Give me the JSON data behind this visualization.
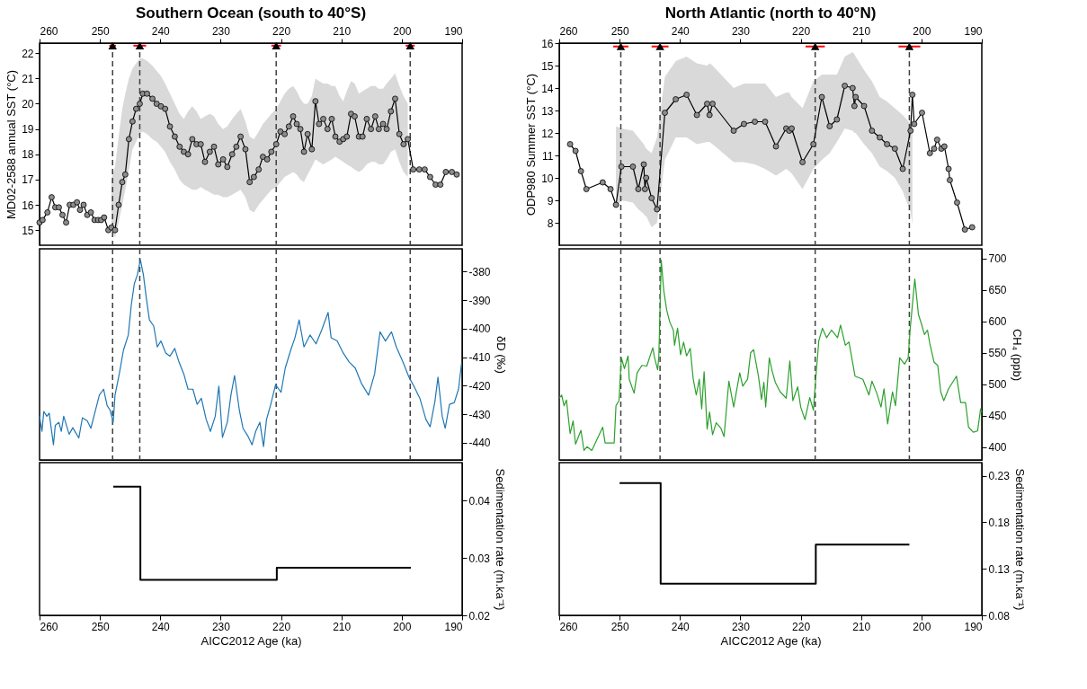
{
  "chart_data": [
    {
      "type": "line",
      "title": "Southern Ocean (south to 40°S)",
      "ylabel": "MD02-2588  annual SST (°C)",
      "xlim": [
        260,
        190
      ],
      "xticks": [
        260,
        250,
        240,
        230,
        220,
        210,
        200,
        190
      ],
      "ylim": [
        14.4,
        22.4
      ],
      "yticks": [
        15,
        16,
        17,
        18,
        19,
        20,
        21,
        22
      ],
      "series": [
        {
          "marker": "circle",
          "color": "#000000",
          "x": [
            260,
            259.5,
            258.7,
            258,
            257.4,
            256.8,
            256.2,
            255.6,
            255,
            254.4,
            253.8,
            253.3,
            252.7,
            252.1,
            251.5,
            250.9,
            250.3,
            249.8,
            249.3,
            248.6,
            248.1,
            247.5,
            246.9,
            246.3,
            245.8,
            245.2,
            244.6,
            244,
            243.4,
            242.9,
            242.2,
            241.3,
            240.6,
            239.9,
            239.2,
            238.4,
            237.6,
            236.8,
            236.1,
            235.4,
            234.7,
            234,
            233.3,
            232.6,
            231.8,
            231.1,
            230.4,
            229.6,
            228.9,
            228.1,
            227.4,
            226.7,
            225.9,
            225.2,
            224.5,
            223.7,
            223,
            222.3,
            221.6,
            220.8,
            220.1,
            219.4,
            218.7,
            218,
            217.4,
            216.8,
            216.2,
            215.6,
            214.9,
            214.3,
            213.7,
            213,
            212.3,
            211.6,
            211,
            210.3,
            209.7,
            209.1,
            208.4,
            207.8,
            207.1,
            206.5,
            205.8,
            205.1,
            204.4,
            203.8,
            203.1,
            202.5,
            201.8,
            201.1,
            200.4,
            199.7,
            199,
            198.1,
            197.1,
            196.2,
            195.3,
            194.4,
            193.6,
            192.7,
            191.7,
            190.9
          ],
          "values": [
            15.3,
            15.4,
            15.7,
            16.3,
            15.9,
            15.9,
            15.6,
            15.3,
            16.0,
            16.0,
            16.1,
            15.8,
            16.0,
            15.6,
            15.7,
            15.4,
            15.4,
            15.4,
            15.5,
            15.0,
            15.1,
            15.0,
            16.0,
            16.9,
            17.2,
            18.6,
            19.3,
            19.8,
            20.0,
            20.4,
            20.4,
            20.2,
            20.0,
            19.9,
            19.8,
            19.1,
            18.7,
            18.3,
            18.1,
            18.0,
            18.6,
            18.4,
            18.4,
            17.7,
            18.1,
            18.3,
            17.6,
            17.8,
            17.5,
            18.0,
            18.3,
            18.7,
            18.2,
            16.9,
            17.1,
            17.4,
            17.9,
            17.8,
            18.1,
            18.4,
            18.9,
            18.8,
            19.1,
            19.5,
            19.2,
            19.0,
            18.1,
            18.8,
            18.2,
            20.1,
            19.2,
            19.4,
            19.0,
            19.4,
            18.7,
            18.5,
            18.6,
            18.7,
            19.6,
            19.5,
            18.7,
            18.7,
            19.4,
            19.0,
            19.5,
            19.0,
            19.2,
            19.0,
            19.7,
            20.2,
            18.8,
            18.4,
            18.6,
            17.4,
            17.4,
            17.4,
            17.1,
            16.8,
            16.8,
            17.3,
            17.3,
            17.2
          ],
          "lower": [
            null,
            null,
            null,
            null,
            null,
            null,
            null,
            null,
            null,
            null,
            null,
            null,
            null,
            null,
            null,
            null,
            null,
            null,
            null,
            null,
            15.0,
            14.7,
            15.3,
            16.0,
            16.6,
            17.4,
            18.2,
            18.5,
            18.8,
            18.9,
            18.8,
            18.6,
            18.5,
            18.3,
            18.1,
            17.7,
            17.4,
            17.0,
            16.8,
            16.7,
            16.6,
            16.6,
            16.7,
            16.6,
            16.5,
            16.4,
            16.4,
            16.3,
            16.3,
            16.4,
            16.5,
            16.6,
            16.3,
            15.8,
            15.7,
            16.0,
            16.2,
            16.4,
            16.6,
            16.7,
            16.9,
            17.1,
            17.2,
            17.3,
            17.2,
            17.0,
            16.9,
            17.2,
            17.5,
            17.8,
            17.7,
            17.6,
            17.7,
            17.8,
            17.9,
            17.8,
            17.7,
            17.6,
            17.5,
            17.4,
            17.3,
            17.4,
            17.6,
            17.7,
            17.7,
            17.6,
            17.6,
            17.8,
            18.1,
            18.2,
            17.7,
            17.3,
            17.1,
            null,
            null,
            null,
            null,
            null,
            null,
            null,
            null,
            null
          ],
          "upper": [
            null,
            null,
            null,
            null,
            null,
            null,
            null,
            null,
            null,
            null,
            null,
            null,
            null,
            null,
            null,
            null,
            null,
            null,
            null,
            null,
            17.0,
            17.5,
            18.7,
            19.8,
            20.4,
            21.0,
            21.4,
            21.6,
            21.8,
            21.8,
            21.7,
            21.5,
            21.3,
            21.1,
            20.8,
            20.4,
            20.0,
            19.6,
            19.4,
            19.7,
            19.9,
            19.7,
            19.4,
            19.5,
            19.6,
            19.5,
            19.2,
            19.0,
            19.1,
            19.4,
            19.6,
            19.8,
            19.3,
            18.7,
            18.6,
            18.9,
            19.2,
            19.4,
            19.6,
            19.8,
            20.1,
            20.4,
            20.6,
            20.7,
            20.5,
            20.2,
            20.0,
            20.0,
            20.3,
            21.0,
            20.9,
            20.8,
            20.8,
            20.7,
            20.7,
            20.3,
            20.1,
            20.5,
            20.9,
            20.8,
            20.4,
            20.5,
            20.6,
            20.7,
            20.7,
            20.6,
            20.6,
            20.8,
            21.0,
            21.2,
            20.7,
            20.3,
            20.0,
            null,
            null,
            null,
            null,
            null,
            null,
            null,
            null,
            null
          ]
        },
        {
          "type": "scatter",
          "marker": "triangle",
          "color": "#000000",
          "x": [
            247.9,
            243.4,
            220.8,
            198.6
          ],
          "values": [
            22.3,
            22.3,
            22.3,
            22.3
          ],
          "xerrors": [
            0.55,
            1.05,
            0.8,
            0.75
          ]
        }
      ],
      "ref_lines": [
        {
          "axis": "x",
          "value": 247.9,
          "color": "#404040",
          "line_style": "dashed"
        },
        {
          "axis": "x",
          "value": 243.4,
          "color": "#404040",
          "line_style": "dashed"
        },
        {
          "axis": "x",
          "value": 220.8,
          "color": "#404040",
          "line_style": "dashed"
        },
        {
          "axis": "x",
          "value": 198.6,
          "color": "#404040",
          "line_style": "dashed"
        }
      ]
    },
    {
      "type": "line",
      "ylabel": "δD (‰)",
      "xlim": [
        260,
        190
      ],
      "tick_labels": "y",
      "ylim": [
        -446,
        -372
      ],
      "yticks": [
        -380,
        -390,
        -400,
        -410,
        -420,
        -430,
        -440
      ],
      "series": [
        {
          "color": "#1f77b4",
          "x": [
            260,
            259.6,
            259.3,
            258.8,
            258.4,
            257.7,
            257.4,
            256.8,
            256.4,
            256,
            255.1,
            254.5,
            253.5,
            252.9,
            252.1,
            251.5,
            250.8,
            250.1,
            249.4,
            248.8,
            248.3,
            247.8,
            247.5,
            246.8,
            246.1,
            245.3,
            244.8,
            244.3,
            243.8,
            243.3,
            242.8,
            242.3,
            241.8,
            241.1,
            240.5,
            239.9,
            239.1,
            238.4,
            237.6,
            236.9,
            236.1,
            235.4,
            234.6,
            233.9,
            233.2,
            232.4,
            231.7,
            230.9,
            230.3,
            229.7,
            228.9,
            228.3,
            227.7,
            226.9,
            226.3,
            225.5,
            224.8,
            224.2,
            223.5,
            222.9,
            222.4,
            221.7,
            220.9,
            220,
            219.3,
            218.4,
            217.7,
            217,
            216.2,
            215.2,
            214.2,
            213.2,
            212.2,
            211.7,
            210.7,
            209.7,
            208.7,
            207.7,
            206.7,
            205.5,
            204.5,
            203.6,
            202.7,
            201.7,
            200.9,
            199.8,
            198.8,
            198,
            197,
            196,
            195.3,
            194.5,
            194,
            193.3,
            192.8,
            192.1,
            191.3,
            190.6,
            190.1
          ],
          "values": [
            -430.7,
            -436,
            -429,
            -430.7,
            -429.6,
            -440.7,
            -433.9,
            -432.8,
            -436,
            -430.7,
            -437,
            -434.7,
            -438.3,
            -431.2,
            -432.3,
            -434.9,
            -429.1,
            -423.3,
            -421.2,
            -427,
            -428.6,
            -432.8,
            -423.3,
            -415.9,
            -407.5,
            -402.2,
            -391.6,
            -384.2,
            -381.1,
            -375.8,
            -381.1,
            -389.5,
            -396.9,
            -399,
            -406.4,
            -404.3,
            -408.5,
            -409.6,
            -406.9,
            -411.7,
            -415.9,
            -421.2,
            -421.2,
            -426.5,
            -424.4,
            -431.8,
            -436,
            -430.7,
            -420.1,
            -438.1,
            -432.8,
            -423.3,
            -416.4,
            -428.6,
            -434.9,
            -437.6,
            -440.7,
            -436,
            -432.8,
            -441.3,
            -431.8,
            -426.5,
            -419.6,
            -422.3,
            -413.8,
            -407.5,
            -403.2,
            -396.9,
            -406.4,
            -402.2,
            -405.3,
            -400.1,
            -394.3,
            -403.2,
            -404.3,
            -408.5,
            -411.7,
            -413.8,
            -419.1,
            -423.3,
            -415.9,
            -401.1,
            -404.3,
            -401.1,
            -406.4,
            -411.7,
            -417,
            -420.1,
            -424.4,
            -431.8,
            -434.4,
            -425.4,
            -417,
            -430.7,
            -434.9,
            -426.5,
            -425.9,
            -421.2,
            -412.2
          ]
        }
      ],
      "ref_lines": [
        {
          "axis": "x",
          "value": 247.9,
          "color": "#404040",
          "line_style": "dashed"
        },
        {
          "axis": "x",
          "value": 243.4,
          "color": "#404040",
          "line_style": "dashed"
        },
        {
          "axis": "x",
          "value": 220.8,
          "color": "#404040",
          "line_style": "dashed"
        },
        {
          "axis": "x",
          "value": 198.6,
          "color": "#404040",
          "line_style": "dashed"
        }
      ]
    },
    {
      "type": "step",
      "xlabel": "AICC2012 Age (ka)",
      "ylabel": "Sedimentation rate (m.ka⁻¹)",
      "xlim": [
        260,
        190
      ],
      "xticks": [
        260,
        250,
        240,
        230,
        220,
        210,
        200,
        190
      ],
      "ylim": [
        0.02,
        0.0466
      ],
      "yticks": [
        0.02,
        0.03,
        0.04
      ],
      "series": [
        {
          "color": "#000000",
          "x": [
            247.8,
            243.3,
            220.7,
            198.5
          ],
          "values": [
            0.0424,
            0.0262,
            0.0283,
            0.0283
          ]
        }
      ]
    },
    {
      "type": "line",
      "title": "North Atlantic (north to 40°N)",
      "ylabel": "ODP980 Summer SST (°C)",
      "xlim": [
        260,
        190
      ],
      "xticks": [
        260,
        250,
        240,
        230,
        220,
        210,
        200,
        190
      ],
      "ylim": [
        7.0,
        16.0
      ],
      "yticks": [
        8,
        9,
        10,
        11,
        12,
        13,
        14,
        15,
        16
      ],
      "series": [
        {
          "marker": "circle",
          "color": "#000000",
          "x": [
            258.2,
            257.3,
            256.4,
            255.5,
            252.8,
            251.5,
            250.6,
            249.7,
            247.8,
            246.9,
            246.0,
            245.8,
            245.6,
            244.7,
            243.8,
            242.5,
            240.7,
            238.9,
            237.2,
            235.5,
            235.1,
            234.6,
            231.1,
            229.4,
            227.6,
            225.9,
            224.1,
            222.4,
            221.9,
            221.5,
            219.7,
            217.9,
            216.5,
            215.2,
            214.0,
            212.7,
            211.4,
            211.1,
            210.9,
            209.5,
            208.2,
            206.9,
            205.7,
            204.4,
            203.1,
            201.8,
            201.5,
            201.2,
            199.9,
            198.6,
            197.9,
            197.4,
            196.7,
            196.2,
            195.5,
            195.3,
            194.1,
            192.8,
            191.6
          ],
          "values": [
            11.5,
            11.2,
            10.3,
            9.5,
            9.8,
            9.5,
            8.8,
            10.5,
            10.5,
            9.5,
            10.6,
            9.5,
            10.0,
            9.1,
            8.6,
            12.9,
            13.5,
            13.7,
            12.8,
            13.3,
            12.8,
            13.3,
            12.1,
            12.4,
            12.5,
            12.5,
            11.4,
            12.2,
            12.1,
            12.2,
            10.7,
            11.5,
            13.6,
            12.3,
            12.6,
            14.1,
            14.0,
            13.2,
            13.6,
            13.2,
            12.1,
            11.8,
            11.5,
            11.3,
            10.4,
            12.1,
            13.7,
            12.4,
            12.9,
            11.1,
            11.3,
            11.7,
            11.3,
            11.4,
            10.4,
            9.9,
            8.9,
            7.7,
            7.8
          ],
          "lower": [
            null,
            null,
            null,
            null,
            null,
            null,
            8.7,
            9.0,
            8.9,
            8.6,
            8.4,
            8.3,
            8.3,
            7.8,
            8.0,
            10.8,
            11.8,
            11.8,
            11.5,
            11.6,
            11.6,
            11.5,
            10.7,
            10.7,
            10.6,
            10.4,
            10.1,
            10.4,
            10.3,
            10.2,
            9.5,
            10.4,
            10.8,
            11.1,
            11.6,
            12.2,
            12.1,
            12.0,
            12.0,
            11.5,
            11.1,
            10.5,
            10.3,
            10.0,
            9.4,
            8.5,
            7.9,
            null,
            null,
            null,
            null,
            null,
            null,
            null,
            null,
            null,
            null,
            null,
            null
          ],
          "upper": [
            null,
            null,
            null,
            null,
            null,
            null,
            12.3,
            12.2,
            12.1,
            11.8,
            11.5,
            11.4,
            11.3,
            11.1,
            11.8,
            14.5,
            15.2,
            15.4,
            15.1,
            15.0,
            15.1,
            15.0,
            14.0,
            14.2,
            14.2,
            14.2,
            13.6,
            13.8,
            13.8,
            13.6,
            13.1,
            14.3,
            14.6,
            14.6,
            14.6,
            15.4,
            15.6,
            15.5,
            15.4,
            14.8,
            14.3,
            13.6,
            13.4,
            13.1,
            12.8,
            12.4,
            12.5,
            null,
            null,
            null,
            null,
            null,
            null,
            null,
            null,
            null,
            null,
            null,
            null
          ]
        },
        {
          "type": "scatter",
          "marker": "triangle",
          "color": "#000000",
          "x": [
            249.8,
            243.3,
            217.6,
            202.0
          ],
          "values": [
            15.85,
            15.85,
            15.85,
            15.85
          ],
          "xerrors": [
            1.25,
            1.4,
            1.6,
            1.8
          ]
        }
      ],
      "ref_lines": [
        {
          "axis": "x",
          "value": 249.8,
          "color": "#404040",
          "line_style": "dashed"
        },
        {
          "axis": "x",
          "value": 243.3,
          "color": "#404040",
          "line_style": "dashed"
        },
        {
          "axis": "x",
          "value": 217.6,
          "color": "#404040",
          "line_style": "dashed"
        },
        {
          "axis": "x",
          "value": 202.0,
          "color": "#404040",
          "line_style": "dashed"
        }
      ]
    },
    {
      "type": "line",
      "ylabel": "CH₄ (ppb)",
      "xlim": [
        260,
        190
      ],
      "tick_labels": "y",
      "ylim": [
        380,
        715
      ],
      "yticks": [
        400,
        450,
        500,
        550,
        600,
        650,
        700
      ],
      "series": [
        {
          "color": "#2ca02c",
          "x": [
            260,
            259.6,
            259.2,
            258.8,
            258.2,
            257.7,
            257.3,
            256.4,
            255.9,
            255.4,
            254.6,
            252.8,
            252.4,
            250.9,
            250.6,
            250.1,
            249.7,
            249.2,
            248.6,
            248.4,
            247.6,
            247.1,
            246.3,
            245.5,
            244.5,
            244.2,
            243.7,
            243.5,
            243.1,
            242.7,
            242.2,
            241.7,
            241.1,
            240.9,
            240.4,
            239.9,
            239.4,
            238.9,
            238.3,
            237.8,
            237.3,
            236.8,
            236.4,
            236,
            235.5,
            235.1,
            234.6,
            234,
            233.2,
            232.7,
            231.9,
            231.1,
            230.1,
            229.6,
            228.8,
            228.3,
            227.8,
            227,
            226.5,
            226.1,
            225.8,
            225.2,
            224.7,
            224.2,
            223.4,
            222.4,
            221.8,
            221.3,
            220.5,
            220,
            219.3,
            218.5,
            217.9,
            217.6,
            217,
            216.4,
            215.7,
            214.9,
            213.9,
            213.4,
            212.6,
            212,
            211,
            209.7,
            208.7,
            208.2,
            207.4,
            206.7,
            206.2,
            205.6,
            204.8,
            204.3,
            203.6,
            202.8,
            202.2,
            201.9,
            201.1,
            200.5,
            200,
            199.5,
            199,
            198.6,
            197.9,
            197.3,
            196.8,
            196.3,
            195.5,
            194.2,
            193.5,
            192.7,
            192.2,
            191.4,
            190.7,
            190.2,
            190
          ],
          "values": [
            478,
            483,
            466,
            475,
            422,
            442,
            405,
            427,
            395,
            401,
            395,
            432,
            407,
            407,
            466,
            474,
            542,
            525,
            545,
            508,
            486,
            518,
            530,
            529,
            558,
            542,
            523,
            545,
            697,
            650,
            618,
            599,
            586,
            562,
            589,
            547,
            567,
            545,
            557,
            508,
            483,
            508,
            461,
            520,
            429,
            456,
            420,
            439,
            430,
            417,
            505,
            464,
            518,
            497,
            508,
            550,
            555,
            513,
            476,
            503,
            464,
            542,
            520,
            503,
            488,
            478,
            537,
            474,
            496,
            464,
            444,
            479,
            459,
            498,
            569,
            589,
            574,
            586,
            574,
            594,
            562,
            567,
            513,
            508,
            483,
            505,
            486,
            464,
            493,
            437,
            488,
            466,
            542,
            532,
            542,
            584,
            667,
            611,
            596,
            579,
            586,
            564,
            535,
            530,
            488,
            474,
            493,
            513,
            471,
            471,
            432,
            424,
            426,
            461,
            456
          ]
        }
      ],
      "ref_lines": [
        {
          "axis": "x",
          "value": 249.8,
          "color": "#404040",
          "line_style": "dashed"
        },
        {
          "axis": "x",
          "value": 243.3,
          "color": "#404040",
          "line_style": "dashed"
        },
        {
          "axis": "x",
          "value": 217.6,
          "color": "#404040",
          "line_style": "dashed"
        },
        {
          "axis": "x",
          "value": 202.0,
          "color": "#404040",
          "line_style": "dashed"
        }
      ]
    },
    {
      "type": "step",
      "xlabel": "AICC2012 Age (ka)",
      "ylabel": "Sedimentation rate (m.ka⁻¹)",
      "xlim": [
        260,
        190
      ],
      "xticks": [
        260,
        250,
        240,
        230,
        220,
        210,
        200,
        190
      ],
      "ylim": [
        0.08,
        0.244
      ],
      "yticks": [
        0.08,
        0.13,
        0.18,
        0.23
      ],
      "series": [
        {
          "color": "#000000",
          "x": [
            250.0,
            243.2,
            217.5,
            202.0
          ],
          "values": [
            0.222,
            0.114,
            0.156,
            0.156
          ]
        }
      ]
    }
  ]
}
